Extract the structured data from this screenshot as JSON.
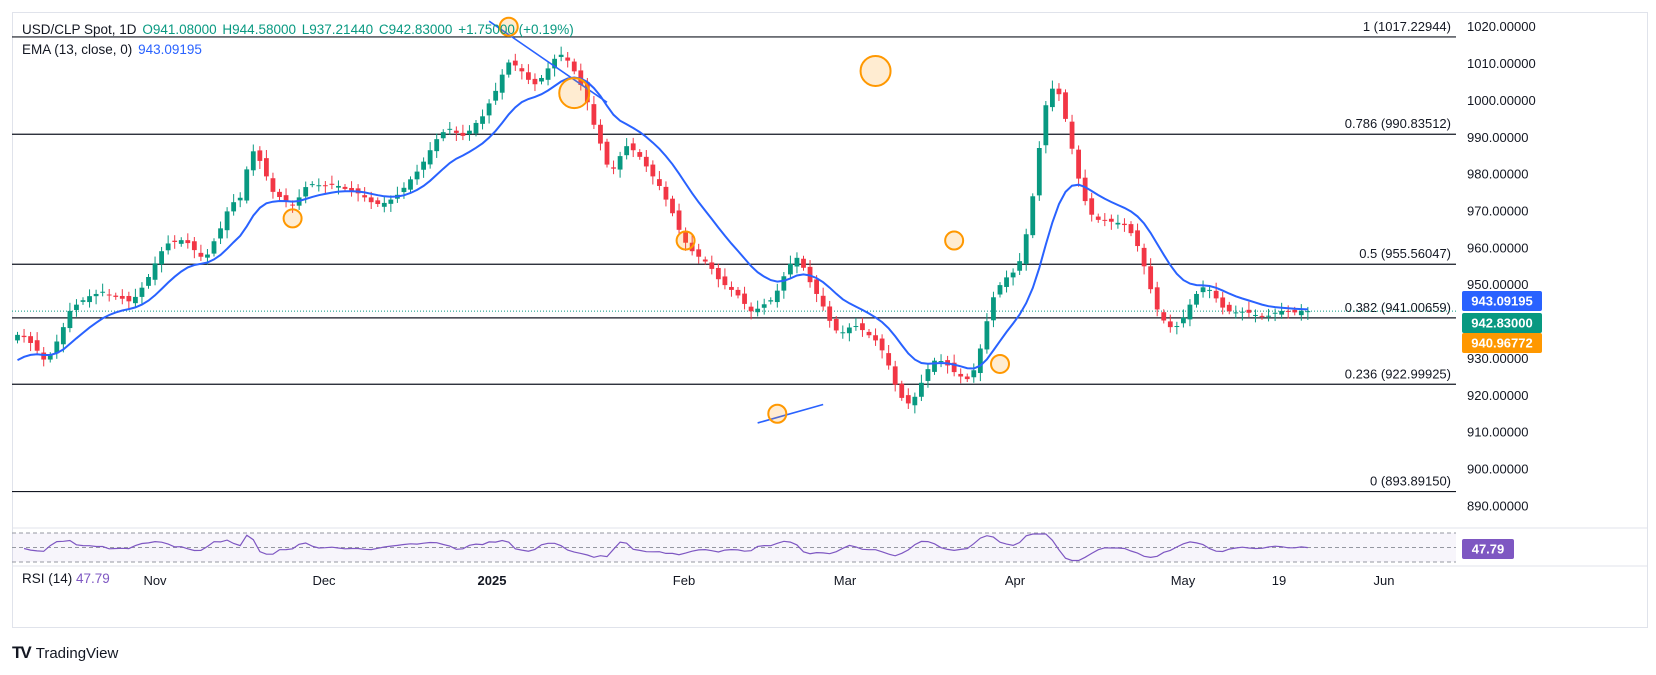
{
  "header": {
    "symbol": "USD/CLP Spot, 1D",
    "open": "O941.08000",
    "high": "H944.58000",
    "low": "L937.21440",
    "close": "C942.83000",
    "change": "+1.75000 (+0.19%)",
    "ema_label": "EMA (13, close, 0)",
    "ema_value": "943.09195"
  },
  "rsi": {
    "label": "RSI (14)",
    "value": "47.79"
  },
  "branding": {
    "logo_text": "TradingView"
  },
  "colors": {
    "up": "#089981",
    "down": "#f23645",
    "ema": "#2962ff",
    "rsi": "#7e57c2",
    "fib": "#131722",
    "marker": "#ff9800"
  },
  "chart_data": {
    "type": "candlestick",
    "ylim": [
      884,
      1024
    ],
    "y_ticks": [
      "1020.00000",
      "1010.00000",
      "1000.00000",
      "990.00000",
      "980.00000",
      "970.00000",
      "960.00000",
      "950.00000",
      "940.00000",
      "930.00000",
      "920.00000",
      "910.00000",
      "900.00000",
      "890.00000"
    ],
    "x_ticks": [
      "Nov",
      "Dec",
      "2025",
      "Feb",
      "Mar",
      "Apr",
      "May",
      "19",
      "Jun"
    ],
    "price_labels": [
      {
        "text": "943.09195",
        "price": 943.09195,
        "color": "#2962ff"
      },
      {
        "text": "942.83000",
        "price": 942.83,
        "color": "#089981"
      },
      {
        "text": "940.96772",
        "price": 940.96772,
        "color": "#ff9800"
      }
    ],
    "fib_levels": [
      {
        "label": "1 (1017.22944)",
        "price": 1017.22944
      },
      {
        "label": "0.786 (990.83512)",
        "price": 990.83512
      },
      {
        "label": "0.5 (955.56047)",
        "price": 955.56047
      },
      {
        "label": "0.382 (941.00659)",
        "price": 941.00659
      },
      {
        "label": "0.236 (922.99925)",
        "price": 922.99925
      },
      {
        "label": "0 (893.89150)",
        "price": 893.8915
      }
    ],
    "closes": [
      936.4,
      935.8,
      934.2,
      932.1,
      929.7,
      930.9,
      934.6,
      938.5,
      942.9,
      944.6,
      945.8,
      946.9,
      947.5,
      948.1,
      947.3,
      946.7,
      946.2,
      945.5,
      946.7,
      949.2,
      952.1,
      955.8,
      959.1,
      961.2,
      961.6,
      962.1,
      961.3,
      959.4,
      957.6,
      958.2,
      961.8,
      965.3,
      969.9,
      972.4,
      973.6,
      981.3,
      986.2,
      983.6,
      979.4,
      975.2,
      973.8,
      972.5,
      971.7,
      973.7,
      976.5,
      977.3,
      977.0,
      976.9,
      977.1,
      976.8,
      976.0,
      975.4,
      974.8,
      973.7,
      972.4,
      971.9,
      972.2,
      973.1,
      974.4,
      976.3,
      978.6,
      980.7,
      983.4,
      986.5,
      989.5,
      991.4,
      992.3,
      991.2,
      990.4,
      991.8,
      993.9,
      995.7,
      999.2,
      1002.6,
      1007.0,
      1010.3,
      1009.5,
      1007.9,
      1005.6,
      1004.4,
      1006.1,
      1008.7,
      1011.3,
      1012.4,
      1010.8,
      1007.9,
      1004.2,
      999.5,
      993.4,
      988.3,
      982.6,
      981.5,
      984.9,
      987.6,
      986.5,
      984.7,
      982.1,
      979.4,
      976.8,
      973.1,
      969.4,
      964.9,
      961.4,
      959.1,
      957.6,
      956.3,
      954.3,
      951.5,
      949.9,
      948.6,
      947.1,
      944.8,
      942.8,
      943.5,
      944.7,
      945.8,
      948.4,
      952.3,
      955.7,
      957.3,
      954.6,
      950.7,
      947.5,
      944.1,
      940.2,
      937.6,
      937.1,
      938.4,
      938.8,
      937.7,
      936.3,
      934.9,
      932.2,
      928.1,
      922.9,
      919.3,
      917.8,
      919.6,
      923.4,
      927.1,
      929.4,
      929.3,
      928.1,
      926.3,
      925.1,
      924.4,
      926.8,
      932.7,
      940.1,
      946.6,
      949.9,
      952.0,
      953.3,
      956.4,
      963.7,
      974.0,
      987.1,
      998.7,
      1003.2,
      1001.7,
      995.0,
      986.9,
      978.8,
      972.7,
      969.0,
      967.6,
      967.4,
      967.1,
      966.8,
      966.2,
      964.0,
      960.5,
      955.0,
      948.8,
      943.3,
      940.3,
      938.5,
      938.8,
      941.1,
      944.6,
      947.5,
      949.3,
      948.6,
      946.3,
      943.8,
      942.8,
      942.5,
      942.7,
      942.4,
      941.8,
      941.3,
      941.6,
      942.4,
      942.9,
      942.7,
      942.5,
      942.9,
      942.83
    ],
    "markers": [
      {
        "type": "circle",
        "x_index": 75,
        "price": 1020
      },
      {
        "type": "circle",
        "x_index": 85,
        "price": 1002
      },
      {
        "type": "circle",
        "x_index": 42,
        "price": 968
      },
      {
        "type": "circle",
        "x_index": 102,
        "price": 962
      },
      {
        "type": "circle",
        "x_index": 116,
        "price": 915
      },
      {
        "type": "circle",
        "x_index": 131,
        "price": 1008
      },
      {
        "type": "circle",
        "x_index": 143,
        "price": 962
      },
      {
        "type": "circle",
        "x_index": 150,
        "price": 928.5
      }
    ],
    "trendlines": [
      {
        "from": {
          "x_index": 72,
          "price": 1021.5
        },
        "to": {
          "x_index": 90,
          "price": 999.5
        }
      },
      {
        "from": {
          "x_index": 113,
          "price": 912.5
        },
        "to": {
          "x_index": 123,
          "price": 917.5
        }
      }
    ]
  }
}
